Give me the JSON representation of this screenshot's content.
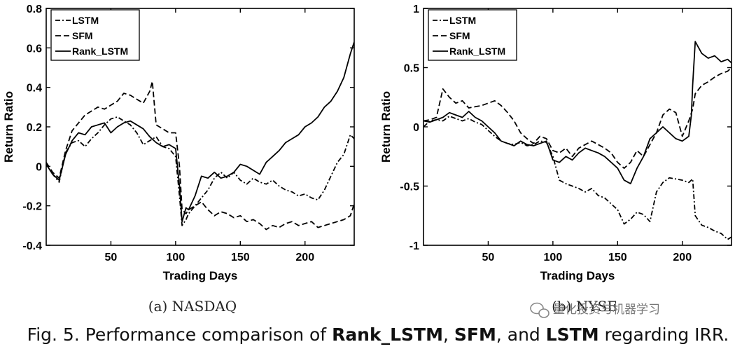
{
  "chart_data": [
    {
      "type": "line",
      "title": "",
      "xlabel": "Trading Days",
      "ylabel": "Return Ratio",
      "xlim": [
        0,
        238
      ],
      "ylim": [
        -0.4,
        0.8
      ],
      "xticks": [
        50,
        100,
        150,
        200
      ],
      "yticks": [
        -0.4,
        -0.2,
        0,
        0.2,
        0.4,
        0.6,
        0.8
      ],
      "ytick_labels": [
        "-0.4",
        "-0.2",
        "0",
        "0.2",
        "0.4",
        "0.6",
        "0.8"
      ],
      "grid": false,
      "legend": "top-left",
      "sublabel": "(a) NASDAQ",
      "series": [
        {
          "name": "LSTM",
          "style": "dash-dot",
          "x": [
            0,
            5,
            10,
            15,
            20,
            25,
            30,
            35,
            40,
            45,
            50,
            55,
            60,
            65,
            70,
            75,
            80,
            85,
            90,
            95,
            100,
            103,
            105,
            108,
            110,
            115,
            120,
            125,
            130,
            135,
            140,
            145,
            150,
            155,
            160,
            165,
            170,
            175,
            180,
            185,
            190,
            195,
            200,
            205,
            210,
            215,
            220,
            225,
            230,
            235,
            238
          ],
          "y": [
            0.01,
            -0.04,
            -0.08,
            0.07,
            0.12,
            0.13,
            0.1,
            0.14,
            0.17,
            0.21,
            0.24,
            0.25,
            0.23,
            0.21,
            0.17,
            0.11,
            0.13,
            0.15,
            0.1,
            0.09,
            0.05,
            -0.15,
            -0.3,
            -0.27,
            -0.24,
            -0.2,
            -0.16,
            -0.12,
            -0.06,
            -0.03,
            -0.06,
            -0.03,
            -0.07,
            -0.09,
            -0.06,
            -0.08,
            -0.09,
            -0.07,
            -0.1,
            -0.12,
            -0.13,
            -0.15,
            -0.14,
            -0.16,
            -0.17,
            -0.12,
            -0.05,
            0.02,
            0.06,
            0.16,
            0.14
          ]
        },
        {
          "name": "SFM",
          "style": "dashed",
          "x": [
            0,
            5,
            10,
            15,
            20,
            25,
            30,
            35,
            40,
            45,
            50,
            55,
            60,
            65,
            70,
            75,
            80,
            82,
            85,
            90,
            95,
            100,
            103,
            105,
            108,
            110,
            115,
            120,
            125,
            130,
            135,
            140,
            145,
            150,
            155,
            160,
            165,
            170,
            175,
            180,
            185,
            190,
            195,
            200,
            205,
            210,
            215,
            220,
            225,
            230,
            235,
            238
          ],
          "y": [
            0.02,
            -0.03,
            -0.06,
            0.08,
            0.18,
            0.22,
            0.26,
            0.28,
            0.3,
            0.29,
            0.31,
            0.33,
            0.37,
            0.36,
            0.34,
            0.32,
            0.38,
            0.43,
            0.21,
            0.19,
            0.17,
            0.17,
            0.0,
            -0.22,
            -0.24,
            -0.22,
            -0.2,
            -0.18,
            -0.22,
            -0.25,
            -0.23,
            -0.24,
            -0.26,
            -0.25,
            -0.28,
            -0.27,
            -0.29,
            -0.32,
            -0.3,
            -0.31,
            -0.29,
            -0.28,
            -0.3,
            -0.29,
            -0.28,
            -0.31,
            -0.3,
            -0.29,
            -0.28,
            -0.27,
            -0.25,
            -0.19
          ]
        },
        {
          "name": "Rank_LSTM",
          "style": "solid",
          "x": [
            0,
            5,
            10,
            15,
            20,
            25,
            30,
            35,
            40,
            45,
            50,
            55,
            60,
            65,
            70,
            75,
            80,
            85,
            90,
            95,
            100,
            103,
            105,
            108,
            110,
            115,
            120,
            125,
            130,
            135,
            140,
            145,
            150,
            155,
            160,
            165,
            170,
            175,
            180,
            185,
            190,
            195,
            200,
            205,
            210,
            215,
            220,
            225,
            230,
            235,
            238
          ],
          "y": [
            0.01,
            -0.04,
            -0.07,
            0.06,
            0.13,
            0.17,
            0.16,
            0.2,
            0.21,
            0.22,
            0.17,
            0.2,
            0.22,
            0.23,
            0.21,
            0.19,
            0.15,
            0.12,
            0.1,
            0.11,
            0.09,
            -0.1,
            -0.28,
            -0.21,
            -0.22,
            -0.15,
            -0.05,
            -0.06,
            -0.03,
            -0.06,
            -0.05,
            -0.03,
            0.01,
            0.0,
            -0.02,
            -0.04,
            0.02,
            0.05,
            0.08,
            0.12,
            0.14,
            0.16,
            0.2,
            0.22,
            0.25,
            0.3,
            0.33,
            0.38,
            0.45,
            0.57,
            0.63
          ]
        }
      ]
    },
    {
      "type": "line",
      "title": "",
      "xlabel": "Trading Days",
      "ylabel": "Return Ratio",
      "xlim": [
        0,
        238
      ],
      "ylim": [
        -1,
        1
      ],
      "xticks": [
        50,
        100,
        150,
        200
      ],
      "yticks": [
        -1,
        -0.5,
        0,
        0.5,
        1
      ],
      "ytick_labels": [
        "-1",
        "-0.5",
        "0",
        "0.5",
        "1"
      ],
      "grid": false,
      "legend": "top-left",
      "sublabel": "(b) NYSE",
      "series": [
        {
          "name": "LSTM",
          "style": "dash-dot",
          "x": [
            0,
            5,
            10,
            15,
            20,
            25,
            30,
            35,
            40,
            45,
            50,
            55,
            60,
            65,
            70,
            75,
            80,
            85,
            90,
            95,
            100,
            105,
            110,
            115,
            120,
            125,
            130,
            135,
            140,
            145,
            150,
            155,
            160,
            165,
            170,
            175,
            180,
            185,
            190,
            195,
            200,
            205,
            208,
            210,
            215,
            220,
            225,
            230,
            235,
            238
          ],
          "y": [
            0.0,
            0.05,
            0.06,
            0.05,
            0.09,
            0.07,
            0.05,
            0.07,
            0.04,
            0.02,
            -0.03,
            -0.08,
            -0.12,
            -0.14,
            -0.15,
            -0.13,
            -0.16,
            -0.15,
            -0.12,
            -0.13,
            -0.25,
            -0.45,
            -0.48,
            -0.5,
            -0.52,
            -0.55,
            -0.52,
            -0.58,
            -0.6,
            -0.65,
            -0.7,
            -0.82,
            -0.78,
            -0.72,
            -0.74,
            -0.8,
            -0.55,
            -0.47,
            -0.43,
            -0.44,
            -0.45,
            -0.47,
            -0.44,
            -0.75,
            -0.83,
            -0.85,
            -0.88,
            -0.9,
            -0.95,
            -0.93
          ]
        },
        {
          "name": "SFM",
          "style": "dashed",
          "x": [
            0,
            5,
            10,
            15,
            20,
            25,
            30,
            35,
            40,
            45,
            50,
            55,
            60,
            65,
            70,
            75,
            80,
            85,
            90,
            95,
            100,
            105,
            110,
            115,
            120,
            125,
            130,
            135,
            140,
            145,
            150,
            155,
            160,
            165,
            170,
            175,
            180,
            185,
            190,
            195,
            200,
            205,
            208,
            210,
            215,
            220,
            225,
            230,
            235,
            238
          ],
          "y": [
            0.05,
            0.06,
            0.08,
            0.32,
            0.25,
            0.2,
            0.22,
            0.16,
            0.17,
            0.18,
            0.2,
            0.22,
            0.18,
            0.12,
            0.05,
            -0.05,
            -0.1,
            -0.14,
            -0.08,
            -0.1,
            -0.2,
            -0.22,
            -0.18,
            -0.25,
            -0.18,
            -0.15,
            -0.12,
            -0.15,
            -0.18,
            -0.22,
            -0.3,
            -0.35,
            -0.3,
            -0.2,
            -0.25,
            -0.15,
            -0.05,
            0.1,
            0.15,
            0.12,
            -0.08,
            0.05,
            0.15,
            0.28,
            0.35,
            0.38,
            0.42,
            0.45,
            0.47,
            0.5
          ]
        },
        {
          "name": "Rank_LSTM",
          "style": "solid",
          "x": [
            0,
            5,
            10,
            15,
            20,
            25,
            30,
            35,
            40,
            45,
            50,
            55,
            60,
            65,
            70,
            75,
            80,
            85,
            90,
            95,
            100,
            105,
            110,
            115,
            120,
            125,
            130,
            135,
            140,
            145,
            150,
            155,
            160,
            165,
            170,
            175,
            180,
            185,
            190,
            195,
            200,
            205,
            207,
            208,
            210,
            215,
            220,
            225,
            230,
            235,
            238
          ],
          "y": [
            0.05,
            0.04,
            0.06,
            0.08,
            0.12,
            0.1,
            0.08,
            0.13,
            0.08,
            0.05,
            0.0,
            -0.05,
            -0.12,
            -0.14,
            -0.16,
            -0.12,
            -0.15,
            -0.16,
            -0.14,
            -0.12,
            -0.28,
            -0.3,
            -0.25,
            -0.28,
            -0.22,
            -0.18,
            -0.2,
            -0.22,
            -0.25,
            -0.3,
            -0.35,
            -0.45,
            -0.48,
            -0.35,
            -0.25,
            -0.1,
            -0.05,
            0.0,
            -0.05,
            -0.1,
            -0.12,
            -0.08,
            0.1,
            0.35,
            0.72,
            0.62,
            0.58,
            0.6,
            0.55,
            0.57,
            0.54
          ]
        }
      ]
    }
  ],
  "caption": {
    "prefix": "Fig. 5.  Performance comparison of ",
    "b1": "Rank_LSTM",
    "sep1": ", ",
    "b2": "SFM",
    "sep2": ", and ",
    "b3": "LSTM",
    "suffix": " regarding IRR."
  },
  "watermark": "量化投资与机器学习"
}
